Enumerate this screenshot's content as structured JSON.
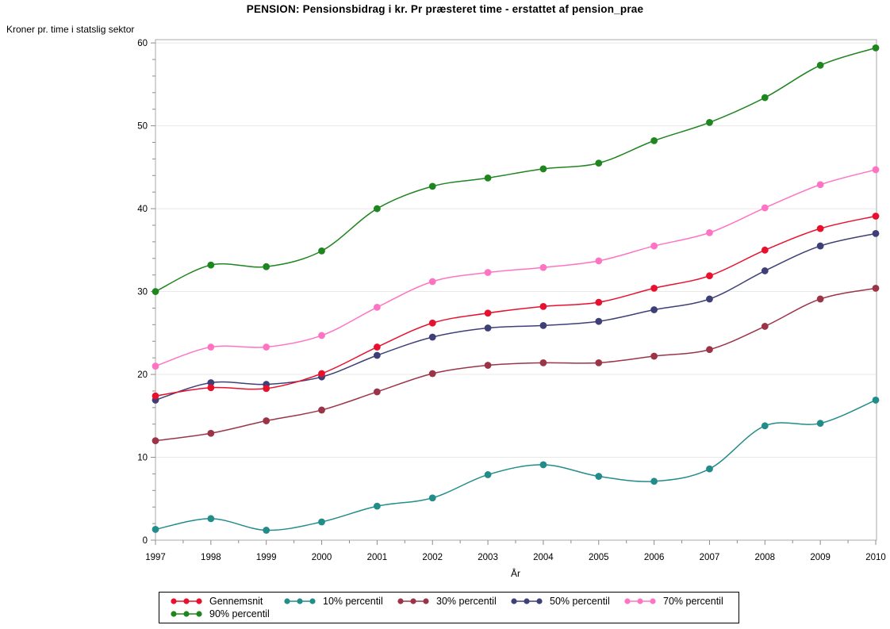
{
  "title": "PENSION: Pensionsbidrag i kr. Pr præsteret time - erstattet af pension_prae",
  "chart_data": {
    "type": "line",
    "title": "PENSION: Pensionsbidrag i kr. Pr præsteret time - erstattet af pension_prae",
    "ylabel": "Kroner pr. time i statslig sektor",
    "xlabel": "År",
    "x": [
      1997,
      1998,
      1999,
      2000,
      2001,
      2002,
      2003,
      2004,
      2005,
      2006,
      2007,
      2008,
      2009,
      2010
    ],
    "ylim": [
      0,
      60
    ],
    "y_ticks": [
      0,
      10,
      20,
      30,
      40,
      50,
      60
    ],
    "grid": "horizontal-major-only",
    "legend_position": "bottom",
    "marker": "filled-circle",
    "line_style": "smooth",
    "series": [
      {
        "name": "Gennemsnit",
        "color": "#e8112d",
        "values": [
          17.4,
          18.4,
          18.3,
          20.1,
          23.3,
          26.2,
          27.4,
          28.2,
          28.7,
          30.4,
          31.9,
          35.0,
          37.6,
          39.1
        ]
      },
      {
        "name": "10% percentil",
        "color": "#228c8a",
        "values": [
          1.3,
          2.6,
          1.2,
          2.2,
          4.1,
          5.1,
          7.9,
          9.1,
          7.7,
          7.1,
          8.6,
          13.8,
          14.1,
          16.9
        ]
      },
      {
        "name": "30% percentil",
        "color": "#9c3448",
        "values": [
          12.0,
          12.9,
          14.4,
          15.7,
          17.9,
          20.1,
          21.1,
          21.4,
          21.4,
          22.2,
          23.0,
          25.8,
          29.1,
          30.4
        ]
      },
      {
        "name": "50% percentil",
        "color": "#3f3f78",
        "values": [
          16.9,
          19.0,
          18.8,
          19.7,
          22.3,
          24.5,
          25.6,
          25.9,
          26.4,
          27.8,
          29.1,
          32.5,
          35.5,
          37.0
        ]
      },
      {
        "name": "70% percentil",
        "color": "#ff74c2",
        "values": [
          21.0,
          23.3,
          23.3,
          24.7,
          28.1,
          31.2,
          32.3,
          32.9,
          33.7,
          35.5,
          37.1,
          40.1,
          42.9,
          44.7
        ]
      },
      {
        "name": "90% percentil",
        "color": "#1f851f",
        "values": [
          30.0,
          33.2,
          33.0,
          34.9,
          40.0,
          42.7,
          43.7,
          44.8,
          45.5,
          48.2,
          50.4,
          53.4,
          57.3,
          59.4
        ]
      }
    ]
  },
  "colors": {
    "frame": "#a9a9a9",
    "gridline": "#e8e8e8",
    "tick": "#8c8c8c",
    "text": "#000000",
    "legend_border": "#000000"
  }
}
